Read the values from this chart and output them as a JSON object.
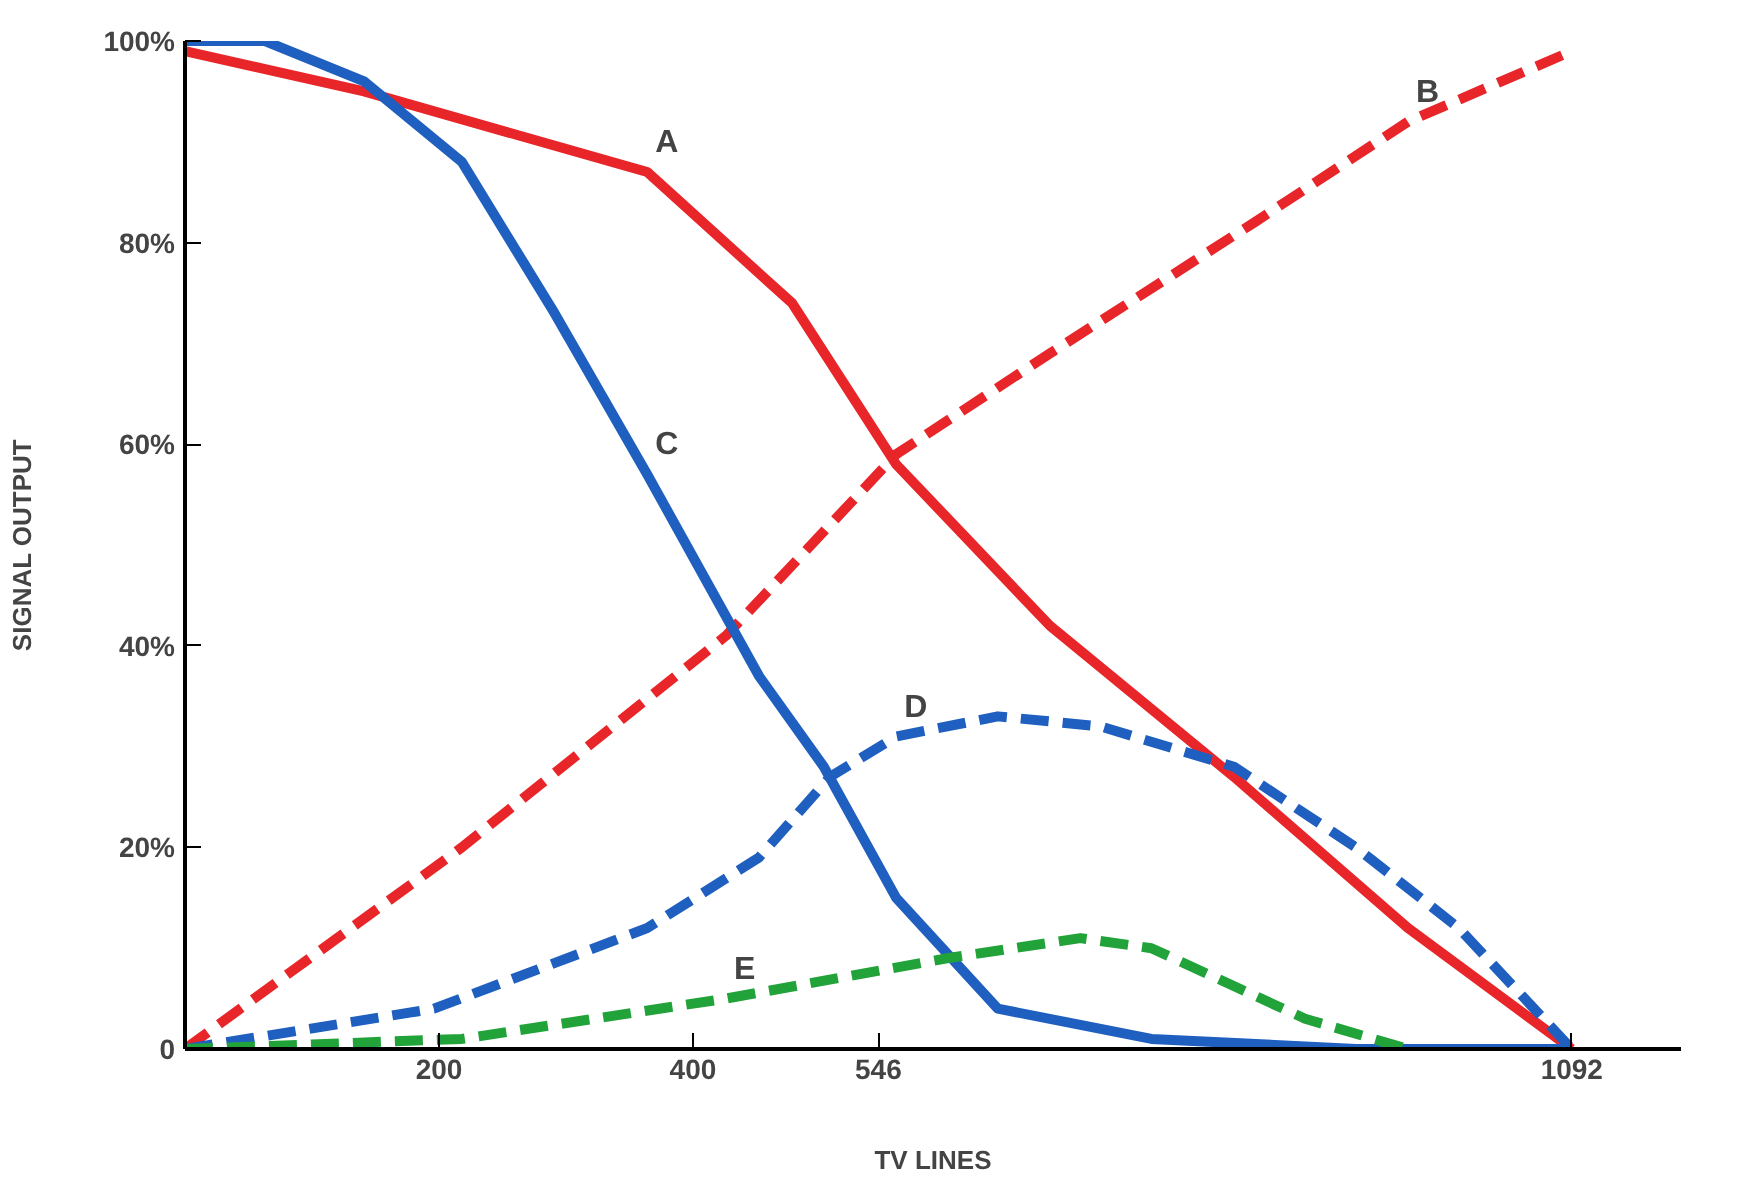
{
  "chart_data": {
    "type": "line",
    "xlabel": "TV LINES",
    "ylabel": "SIGNAL OUTPUT",
    "xlim": [
      0,
      1178
    ],
    "ylim": [
      0,
      100
    ],
    "xticks": [
      200,
      400,
      546,
      1092
    ],
    "yticks": [
      {
        "value": 0,
        "label": "0"
      },
      {
        "value": 20,
        "label": "20%"
      },
      {
        "value": 40,
        "label": "40%"
      },
      {
        "value": 60,
        "label": "60%"
      },
      {
        "value": 80,
        "label": "80%"
      },
      {
        "value": 100,
        "label": "100%"
      }
    ],
    "grid": false,
    "marker": "none",
    "series": [
      {
        "name": "A",
        "color": "#e8262a",
        "line_style": "solid",
        "x": [
          0,
          141,
          364,
          478,
          560,
          681,
          826,
          963,
          1092
        ],
        "values": [
          99,
          95,
          87,
          74,
          58,
          42,
          27,
          12,
          0
        ]
      },
      {
        "name": "B",
        "color": "#e8262a",
        "line_style": "dashed",
        "x": [
          0,
          218,
          426,
          560,
          681,
          842,
          963,
          1092
        ],
        "values": [
          0,
          20,
          41,
          59,
          69,
          82,
          92,
          99
        ]
      },
      {
        "name": "C",
        "color": "#1f5fbf",
        "line_style": "solid",
        "x": [
          0,
          63,
          141,
          218,
          291,
          364,
          452,
          503,
          560,
          640,
          761,
          922,
          1092
        ],
        "values": [
          100,
          100,
          96,
          88,
          73,
          57,
          37,
          28,
          15,
          4,
          1,
          0,
          0
        ]
      },
      {
        "name": "D",
        "color": "#1f5fbf",
        "line_style": "dashed",
        "x": [
          0,
          196,
          364,
          452,
          508,
          560,
          640,
          721,
          826,
          922,
          1003,
          1092
        ],
        "values": [
          0,
          4,
          12,
          19,
          27,
          31,
          33,
          32,
          28,
          20,
          12,
          0
        ]
      },
      {
        "name": "E",
        "color": "#22a33a",
        "line_style": "dashed",
        "x": [
          0,
          218,
          426,
          600,
          705,
          761,
          882,
          963
        ],
        "values": [
          0,
          1,
          5,
          9,
          11,
          10,
          3,
          0
        ]
      }
    ]
  }
}
